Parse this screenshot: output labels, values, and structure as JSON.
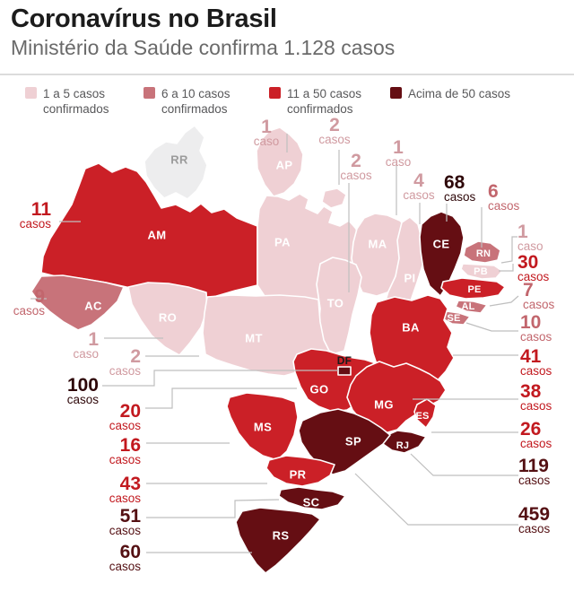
{
  "chart_data": {
    "type": "choropleth-map",
    "region": "Brazil states",
    "title": "Coronavírus no Brasil",
    "subtitle": "Ministério da Saúde confirma 1.128 casos",
    "total_cases_label": "1.128",
    "unit_singular": "caso",
    "unit_plural": "casos",
    "legend": [
      {
        "lines": [
          "1 a 5 casos",
          "confirmados"
        ],
        "color": "#efd0d4",
        "min": 1,
        "max": 5
      },
      {
        "lines": [
          "6 a 10 casos",
          "confirmados"
        ],
        "color": "#c8737a",
        "min": 6,
        "max": 10
      },
      {
        "lines": [
          "11 a 50 casos",
          "confirmados"
        ],
        "color": "#cb2027",
        "min": 11,
        "max": 50
      },
      {
        "lines": [
          "Acima de 50 casos"
        ],
        "color": "#650e13",
        "min": 51,
        "max": null
      }
    ],
    "states": [
      {
        "code": "RR",
        "cases": 0
      },
      {
        "code": "AM",
        "cases": 11
      },
      {
        "code": "AC",
        "cases": 9
      },
      {
        "code": "RO",
        "cases": 1
      },
      {
        "code": "AP",
        "cases": 1
      },
      {
        "code": "PA",
        "cases": 2
      },
      {
        "code": "TO",
        "cases": 2
      },
      {
        "code": "MA",
        "cases": 1
      },
      {
        "code": "PI",
        "cases": 4
      },
      {
        "code": "CE",
        "cases": 68
      },
      {
        "code": "RN",
        "cases": 6
      },
      {
        "code": "PB",
        "cases": 1
      },
      {
        "code": "PE",
        "cases": 30
      },
      {
        "code": "AL",
        "cases": 7
      },
      {
        "code": "SE",
        "cases": 10
      },
      {
        "code": "BA",
        "cases": 41
      },
      {
        "code": "MT",
        "cases": 2
      },
      {
        "code": "DF",
        "cases": 100
      },
      {
        "code": "GO",
        "cases": 20
      },
      {
        "code": "MG",
        "cases": 38
      },
      {
        "code": "ES",
        "cases": 26
      },
      {
        "code": "RJ",
        "cases": 119
      },
      {
        "code": "SP",
        "cases": 459
      },
      {
        "code": "MS",
        "cases": 16
      },
      {
        "code": "PR",
        "cases": 43
      },
      {
        "code": "SC",
        "cases": 51
      },
      {
        "code": "RS",
        "cases": 60
      }
    ]
  }
}
